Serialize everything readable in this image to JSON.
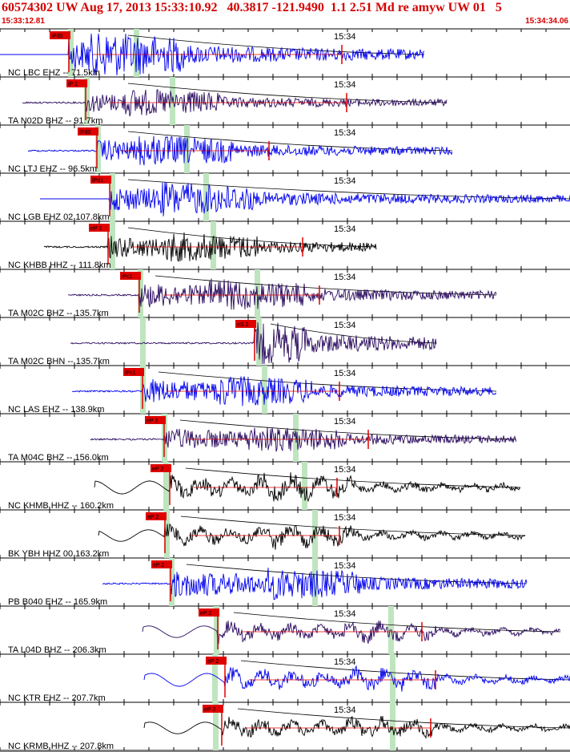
{
  "header": {
    "title": "60574302 UW Aug 17, 2013 15:33:10.92   40.3817 -121.9490  1.1 2.51 Md re amyw UW 01   5",
    "start_time": "15:33:12.81",
    "end_time": "15:34:34.06",
    "minute_marker": "15:34"
  },
  "colors": {
    "header_red": "#d40000",
    "blue": "#0000ee",
    "purple": "#2a0a5e",
    "black": "#000000",
    "green_band": "#bfe5bf",
    "pick_red": "#e00000"
  },
  "traces": [
    {
      "label": "NC LBC EHZ -- 71.5km",
      "pick": "IPd0",
      "color": "blue"
    },
    {
      "label": "TA N02D BHZ -- 91.7km",
      "pick": "iP 1",
      "color": "purple"
    },
    {
      "label": "NC LTJ EHZ -- 96.5km",
      "pick": "IPd0",
      "color": "blue"
    },
    {
      "label": "NC LGB EHZ 02 107.8km",
      "pick": "iPd1",
      "color": "blue"
    },
    {
      "label": "NC KHBB HHZ -- 111.8km",
      "pick": "eP 2",
      "color": "black"
    },
    {
      "label": "TA M02C BHZ -- 135.7km",
      "pick": "iPc1",
      "color": "purple"
    },
    {
      "label": "TA M02C BHN -- 135.7km",
      "pick": "eS 2",
      "color": "purple"
    },
    {
      "label": "NC LAS EHZ -- 138.9km",
      "pick": "iPc1",
      "color": "blue"
    },
    {
      "label": "TA M04C BHZ -- 156.0km",
      "pick": "eP 2",
      "color": "purple"
    },
    {
      "label": "NC KHMB HHZ -- 160.2km",
      "pick": "eP 2",
      "color": "black"
    },
    {
      "label": "BK YBH HHZ 00 163.2km",
      "pick": "eP 2",
      "color": "black"
    },
    {
      "label": "PB B040 EHZ -- 165.9km",
      "pick": "eP 2",
      "color": "blue"
    },
    {
      "label": "TA L04D BHZ -- 206.3km",
      "pick": "eP 2",
      "color": "purple"
    },
    {
      "label": "NC KTR EHZ -- 207.7km",
      "pick": "eP 2",
      "color": "blue"
    },
    {
      "label": "NC KRMB HHZ -- 207.8km",
      "pick": "eP 2",
      "color": "black"
    }
  ]
}
